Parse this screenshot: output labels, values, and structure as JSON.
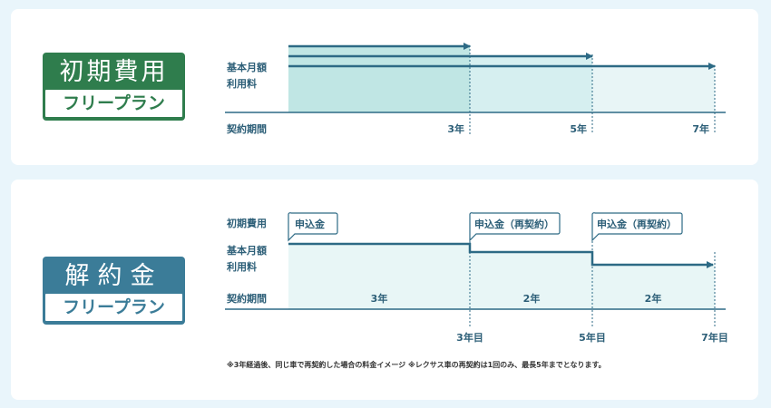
{
  "colors": {
    "background": "#e9f5fb",
    "initial_badge": "#2f7d4d",
    "cancel_badge": "#3b7c98",
    "line": "#2d6a85",
    "fill_dark": "#c0e6e4",
    "fill_mid": "#d6eff0",
    "fill_light": "#e8f5f6"
  },
  "section1": {
    "badge_title": "初期費用",
    "badge_subtitle": "フリープラン",
    "row_monthly_1": "基本月額",
    "row_monthly_2": "利用料",
    "row_period": "契約期間",
    "ticks": [
      "3年",
      "5年",
      "7年"
    ]
  },
  "section2": {
    "badge_title": "解約金",
    "badge_subtitle": "フリープラン",
    "row_initial": "初期費用",
    "row_monthly_1": "基本月額",
    "row_monthly_2": "利用料",
    "row_period": "契約期間",
    "callouts": [
      "申込金",
      "申込金（再契約）",
      "申込金（再契約）"
    ],
    "periods": [
      "3年",
      "2年",
      "2年"
    ],
    "ticks": [
      "3年目",
      "5年目",
      "7年目"
    ],
    "note": "※3年経過後、同じ車で再契約した場合の料金イメージ ※レクサス車の再契約は1回のみ、最長5年までとなります。"
  }
}
